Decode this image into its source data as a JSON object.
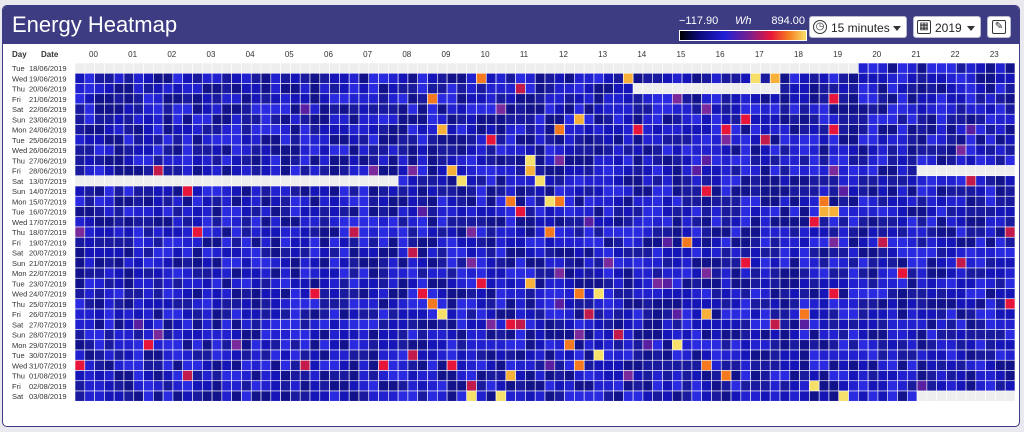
{
  "header": {
    "title": "Energy Heatmap",
    "legend": {
      "min": "−117.90",
      "unit": "Wh",
      "max": "894.00"
    },
    "interval_select": {
      "value": "15 minutes"
    },
    "year_select": {
      "value": "2019"
    }
  },
  "grid": {
    "day_header": "Day",
    "date_header": "Date",
    "hours": [
      "00",
      "01",
      "02",
      "03",
      "04",
      "05",
      "06",
      "07",
      "08",
      "09",
      "10",
      "11",
      "12",
      "13",
      "14",
      "15",
      "16",
      "17",
      "18",
      "19",
      "20",
      "21",
      "22",
      "23"
    ],
    "rows": [
      {
        "day": "Tue",
        "date": "18/06/2019"
      },
      {
        "day": "Wed",
        "date": "19/06/2019"
      },
      {
        "day": "Thu",
        "date": "20/06/2019"
      },
      {
        "day": "Fri",
        "date": "21/06/2019"
      },
      {
        "day": "Sat",
        "date": "22/06/2019"
      },
      {
        "day": "Sun",
        "date": "23/06/2019"
      },
      {
        "day": "Mon",
        "date": "24/06/2019"
      },
      {
        "day": "Tue",
        "date": "25/06/2019"
      },
      {
        "day": "Wed",
        "date": "26/06/2019"
      },
      {
        "day": "Thu",
        "date": "27/06/2019"
      },
      {
        "day": "Fri",
        "date": "28/06/2019"
      },
      {
        "day": "Sat",
        "date": "13/07/2019"
      },
      {
        "day": "Sun",
        "date": "14/07/2019"
      },
      {
        "day": "Mon",
        "date": "15/07/2019"
      },
      {
        "day": "Tue",
        "date": "16/07/2019"
      },
      {
        "day": "Wed",
        "date": "17/07/2019"
      },
      {
        "day": "Thu",
        "date": "18/07/2019"
      },
      {
        "day": "Fri",
        "date": "19/07/2019"
      },
      {
        "day": "Sat",
        "date": "20/07/2019"
      },
      {
        "day": "Sun",
        "date": "21/07/2019"
      },
      {
        "day": "Mon",
        "date": "22/07/2019"
      },
      {
        "day": "Tue",
        "date": "23/07/2019"
      },
      {
        "day": "Wed",
        "date": "24/07/2019"
      },
      {
        "day": "Thu",
        "date": "25/07/2019"
      },
      {
        "day": "Fri",
        "date": "26/07/2019"
      },
      {
        "day": "Sat",
        "date": "27/07/2019"
      },
      {
        "day": "Sun",
        "date": "28/07/2019"
      },
      {
        "day": "Mon",
        "date": "29/07/2019"
      },
      {
        "day": "Tue",
        "date": "30/07/2019"
      },
      {
        "day": "Wed",
        "date": "31/07/2019"
      },
      {
        "day": "Thu",
        "date": "01/08/2019"
      },
      {
        "day": "Fri",
        "date": "02/08/2019"
      },
      {
        "day": "Sat",
        "date": "03/08/2019"
      }
    ]
  },
  "colors": {
    "header_bg": "#3d3b82",
    "no_data": "#eeeeee",
    "base": "#1a1a9e"
  }
}
